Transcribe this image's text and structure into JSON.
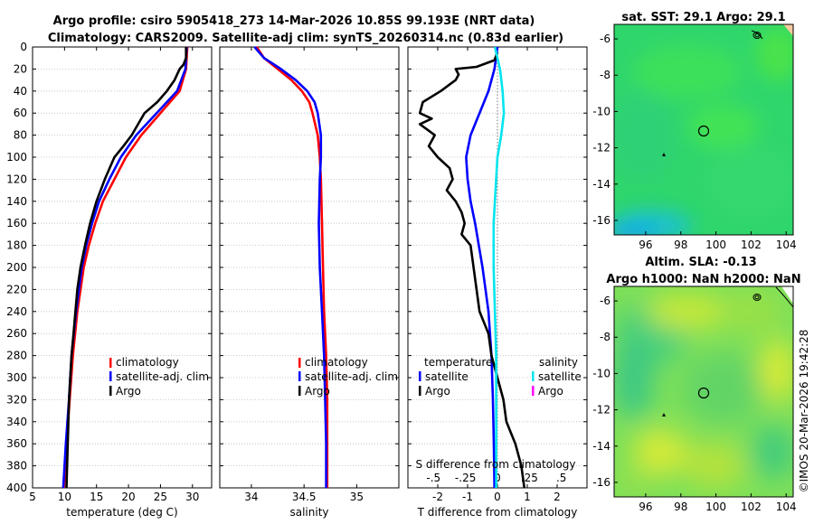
{
  "title_line1": "Argo profile: csiro 5905418_273 14-Mar-2026 10.85S 99.193E (NRT data)",
  "title_line2": "Climatology: CARS2009. Satellite-adj clim: synTS_20260314.nc (0.83d earlier)",
  "copyright": "©IMOS 20-Mar-2026 19:42:28",
  "colors": {
    "climatology": "#ff0000",
    "satellite": "#0000ff",
    "argo": "#000000",
    "sal_satellite": "#00e5ee",
    "sal_argo": "#ff00ff"
  },
  "chart_data": [
    {
      "type": "line",
      "name": "temperature-profile",
      "xlabel": "temperature (deg C)",
      "ylabel": "",
      "xlim": [
        5,
        33
      ],
      "ylim": [
        400,
        0
      ],
      "xticks": [
        5,
        10,
        15,
        20,
        25,
        30
      ],
      "yticks": [
        0,
        20,
        40,
        60,
        80,
        100,
        120,
        140,
        160,
        180,
        200,
        220,
        240,
        260,
        280,
        300,
        320,
        340,
        360,
        380,
        400
      ],
      "legend": [
        "climatology",
        "satellite-adj. clim",
        "Argo"
      ],
      "series": [
        {
          "name": "climatology",
          "color": "#ff0000",
          "depth": [
            0,
            20,
            40,
            60,
            80,
            100,
            120,
            140,
            160,
            180,
            200,
            240,
            280,
            320,
            360,
            400
          ],
          "values": [
            29.2,
            29.0,
            28.0,
            25.0,
            22.0,
            19.6,
            17.8,
            16.0,
            14.8,
            13.8,
            13.0,
            12.0,
            11.3,
            10.8,
            10.3,
            9.9
          ]
        },
        {
          "name": "satellite-adj. clim",
          "color": "#0000ff",
          "depth": [
            0,
            20,
            40,
            60,
            80,
            100,
            120,
            140,
            160,
            180,
            200,
            240,
            280,
            320,
            360,
            400
          ],
          "values": [
            29.1,
            28.9,
            27.6,
            24.4,
            21.2,
            18.8,
            17.0,
            15.4,
            14.3,
            13.4,
            12.7,
            11.8,
            11.1,
            10.7,
            10.2,
            9.8
          ]
        },
        {
          "name": "Argo",
          "color": "#000000",
          "depth": [
            0,
            10,
            16,
            20,
            30,
            40,
            50,
            60,
            70,
            80,
            90,
            100,
            120,
            140,
            160,
            180,
            200,
            220,
            240,
            260,
            280,
            300,
            320,
            340,
            360,
            380,
            400
          ],
          "values": [
            29.0,
            29.0,
            28.6,
            28.0,
            27.2,
            26.0,
            24.5,
            22.5,
            21.5,
            20.5,
            19.2,
            17.8,
            16.3,
            15.0,
            14.0,
            13.2,
            12.5,
            12.0,
            11.7,
            11.4,
            11.1,
            10.9,
            10.7,
            10.6,
            10.5,
            10.4,
            10.3
          ]
        }
      ]
    },
    {
      "type": "line",
      "name": "salinity-profile",
      "xlabel": "salinity",
      "xlim": [
        33.7,
        35.4
      ],
      "ylim": [
        400,
        0
      ],
      "xticks": [
        34,
        34.5,
        35
      ],
      "legend": [
        "climatology",
        "satellite-adj. clim",
        "Argo"
      ],
      "series": [
        {
          "name": "climatology",
          "color": "#ff0000",
          "depth": [
            0,
            10,
            20,
            30,
            40,
            50,
            60,
            80,
            100,
            120,
            160,
            200,
            240,
            280,
            320,
            360,
            400
          ],
          "values": [
            34.05,
            34.12,
            34.25,
            34.38,
            34.48,
            34.55,
            34.58,
            34.63,
            34.65,
            34.66,
            34.67,
            34.68,
            34.69,
            34.71,
            34.72,
            34.72,
            34.72
          ]
        },
        {
          "name": "satellite-adj. clim",
          "color": "#0000ff",
          "depth": [
            0,
            10,
            20,
            30,
            40,
            50,
            60,
            80,
            100,
            120,
            160,
            200,
            240,
            280,
            320,
            360,
            400
          ],
          "values": [
            34.03,
            34.12,
            34.28,
            34.42,
            34.53,
            34.6,
            34.63,
            34.66,
            34.66,
            34.65,
            34.64,
            34.65,
            34.67,
            34.69,
            34.7,
            34.71,
            34.71
          ]
        },
        {
          "name": "Argo",
          "color": "#000000",
          "depth": [],
          "values": []
        }
      ]
    },
    {
      "type": "line",
      "name": "difference-profile",
      "xlabel": "T difference from climatology",
      "x2label": "S difference from climatology",
      "xlim": [
        -3,
        3
      ],
      "ylim": [
        400,
        0
      ],
      "xticks": [
        -2,
        -1,
        0,
        1,
        2
      ],
      "x2ticks": [
        -0.5,
        -0.25,
        0,
        0.25,
        0.5
      ],
      "legend_temperature": [
        "temperature",
        "satellite",
        "Argo"
      ],
      "legend_salinity": [
        "salinity",
        "satellite",
        "Argo"
      ],
      "series": [
        {
          "name": "temperature satellite",
          "color": "#0000ff",
          "depth": [
            0,
            10,
            20,
            40,
            60,
            80,
            100,
            120,
            140,
            160,
            200,
            240,
            280,
            320,
            360,
            400
          ],
          "values": [
            0.0,
            -0.05,
            -0.1,
            -0.3,
            -0.6,
            -0.9,
            -1.05,
            -1.0,
            -0.9,
            -0.75,
            -0.5,
            -0.3,
            -0.2,
            -0.15,
            -0.12,
            -0.1
          ]
        },
        {
          "name": "temperature Argo",
          "color": "#000000",
          "depth": [
            5,
            12,
            18,
            20,
            25,
            30,
            40,
            50,
            60,
            65,
            70,
            80,
            90,
            100,
            110,
            120,
            130,
            140,
            150,
            160,
            170,
            180,
            200,
            220,
            240,
            260,
            280,
            300,
            320,
            340,
            360,
            380,
            400
          ],
          "values": [
            0.0,
            -0.1,
            -0.7,
            -1.4,
            -1.3,
            -1.4,
            -1.9,
            -2.5,
            -2.6,
            -2.2,
            -2.6,
            -2.1,
            -2.3,
            -2.0,
            -1.6,
            -1.5,
            -1.7,
            -1.4,
            -1.2,
            -1.1,
            -1.2,
            -0.9,
            -0.8,
            -0.7,
            -0.6,
            -0.3,
            -0.2,
            0.0,
            0.2,
            0.3,
            0.6,
            0.8,
            0.9
          ]
        },
        {
          "name": "salinity satellite",
          "color": "#00e5ee",
          "depth": [
            0,
            20,
            40,
            60,
            80,
            100,
            120,
            160,
            200,
            240,
            280,
            320,
            360,
            400
          ],
          "values": [
            -0.02,
            0.02,
            0.04,
            0.05,
            0.03,
            0.0,
            -0.01,
            -0.03,
            -0.03,
            -0.02,
            -0.01,
            -0.01,
            -0.01,
            -0.01
          ]
        }
      ]
    },
    {
      "type": "heatmap",
      "name": "sst-map",
      "title": "sat. SST: 29.1 Argo: 29.1",
      "xlim": [
        94.2,
        104.4
      ],
      "ylim": [
        -16.8,
        -5.2
      ],
      "xticks": [
        96,
        98,
        100,
        102,
        104
      ],
      "yticks": [
        -6,
        -8,
        -10,
        -12,
        -14,
        -16
      ],
      "argo_location": [
        99.193,
        -10.85
      ]
    },
    {
      "type": "heatmap",
      "name": "sla-map",
      "title_line1": "Altim. SLA: -0.13",
      "title_line2": "Argo h1000: NaN h2000: NaN",
      "xlim": [
        94.2,
        104.4
      ],
      "ylim": [
        -16.8,
        -5.2
      ],
      "xticks": [
        96,
        98,
        100,
        102,
        104
      ],
      "yticks": [
        -6,
        -8,
        -10,
        -12,
        -14,
        -16
      ],
      "argo_location": [
        99.193,
        -10.85
      ]
    }
  ]
}
